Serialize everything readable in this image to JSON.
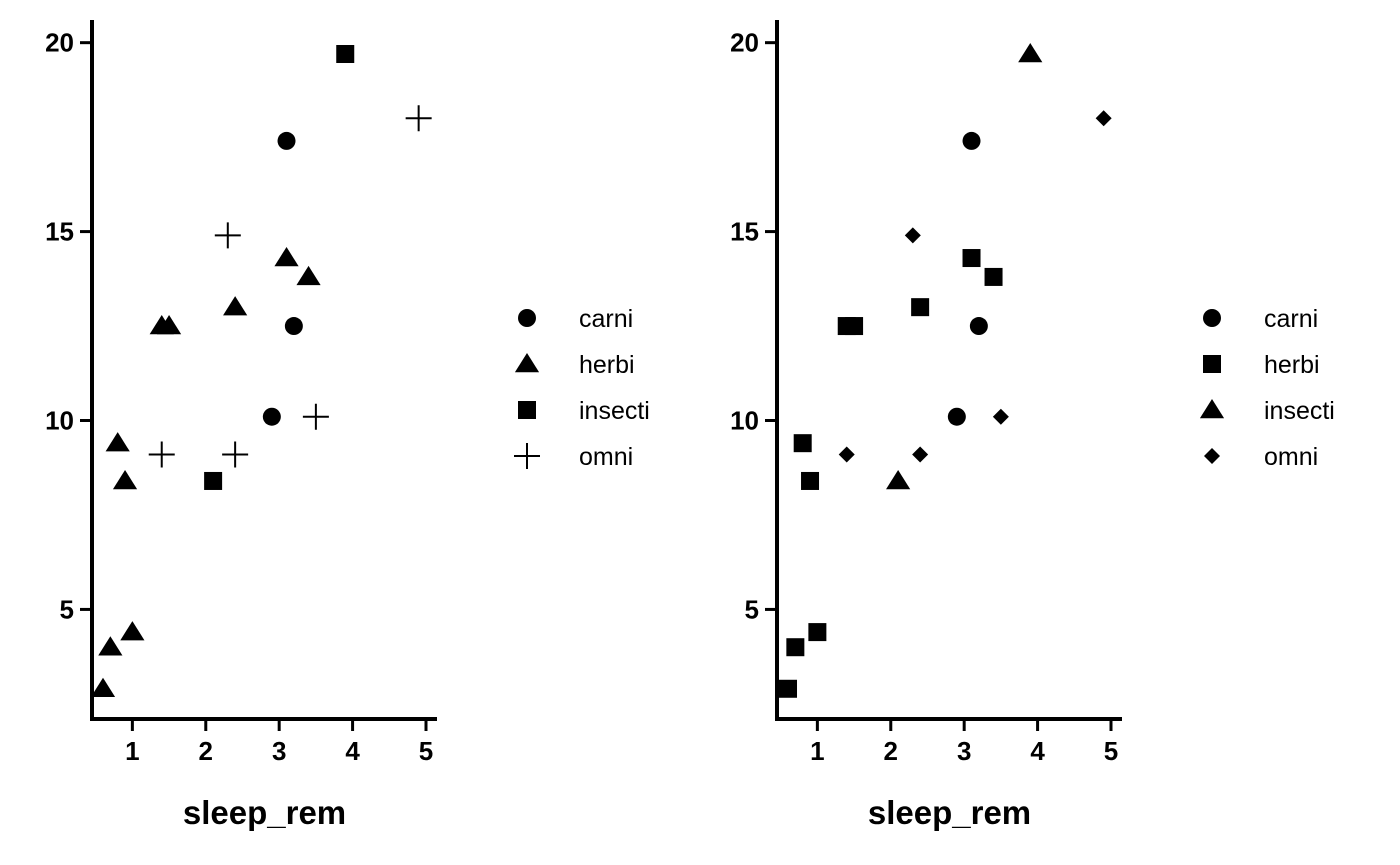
{
  "chart_data": [
    {
      "type": "scatter",
      "xlabel": "sleep_rem",
      "ylabel": "",
      "xlim": [
        0.45,
        5.15
      ],
      "ylim": [
        2.1,
        20.6
      ],
      "xticks": [
        1,
        2,
        3,
        4,
        5
      ],
      "yticks": [
        5,
        10,
        15,
        20
      ],
      "grid": false,
      "legend_position": "right",
      "series": [
        {
          "name": "carni",
          "shape": "circle",
          "points": [
            [
              3.1,
              17.4
            ],
            [
              3.2,
              12.5
            ],
            [
              2.9,
              10.1
            ]
          ]
        },
        {
          "name": "herbi",
          "shape": "triangle",
          "points": [
            [
              3.1,
              14.3
            ],
            [
              3.4,
              13.8
            ],
            [
              2.4,
              13.0
            ],
            [
              1.4,
              12.5
            ],
            [
              1.5,
              12.5
            ],
            [
              0.8,
              9.4
            ],
            [
              0.9,
              8.4
            ],
            [
              1.0,
              4.4
            ],
            [
              0.7,
              4.0
            ],
            [
              0.6,
              2.9
            ]
          ]
        },
        {
          "name": "insecti",
          "shape": "square",
          "points": [
            [
              3.9,
              19.7
            ],
            [
              2.1,
              8.4
            ]
          ]
        },
        {
          "name": "omni",
          "shape": "plus",
          "points": [
            [
              4.9,
              18.0
            ],
            [
              2.3,
              14.9
            ],
            [
              1.4,
              9.1
            ],
            [
              2.4,
              9.1
            ],
            [
              3.5,
              10.1
            ]
          ]
        }
      ]
    },
    {
      "type": "scatter",
      "xlabel": "sleep_rem",
      "ylabel": "",
      "xlim": [
        0.45,
        5.15
      ],
      "ylim": [
        2.1,
        20.6
      ],
      "xticks": [
        1,
        2,
        3,
        4,
        5
      ],
      "yticks": [
        5,
        10,
        15,
        20
      ],
      "grid": false,
      "legend_position": "right",
      "series": [
        {
          "name": "carni",
          "shape": "circle",
          "points": [
            [
              3.1,
              17.4
            ],
            [
              3.2,
              12.5
            ],
            [
              2.9,
              10.1
            ]
          ]
        },
        {
          "name": "herbi",
          "shape": "square",
          "points": [
            [
              3.1,
              14.3
            ],
            [
              3.4,
              13.8
            ],
            [
              2.4,
              13.0
            ],
            [
              1.4,
              12.5
            ],
            [
              1.5,
              12.5
            ],
            [
              0.8,
              9.4
            ],
            [
              0.9,
              8.4
            ],
            [
              1.0,
              4.4
            ],
            [
              0.7,
              4.0
            ],
            [
              0.6,
              2.9
            ]
          ]
        },
        {
          "name": "insecti",
          "shape": "triangle",
          "points": [
            [
              3.9,
              19.7
            ],
            [
              2.1,
              8.4
            ]
          ]
        },
        {
          "name": "omni",
          "shape": "diamond",
          "points": [
            [
              4.9,
              18.0
            ],
            [
              2.3,
              14.9
            ],
            [
              1.4,
              9.1
            ],
            [
              2.4,
              9.1
            ],
            [
              3.5,
              10.1
            ]
          ]
        }
      ]
    }
  ]
}
